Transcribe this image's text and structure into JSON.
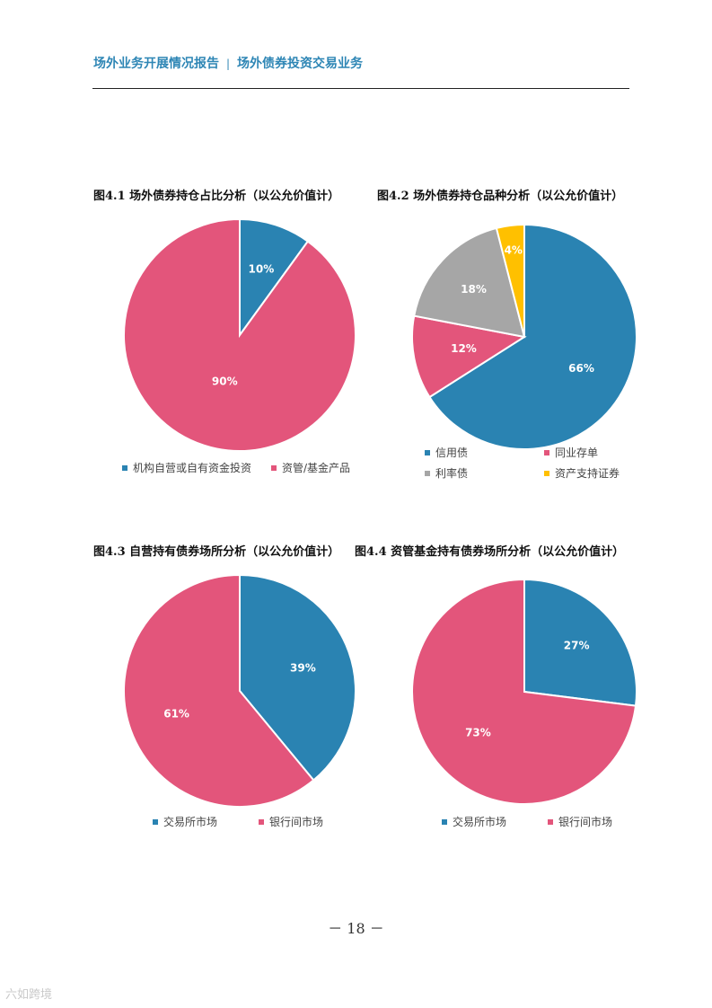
{
  "header": {
    "left": "场外业务开展情况报告",
    "separator": "|",
    "right": "场外债券投资交易业务"
  },
  "page_number": "－ 18 －",
  "watermark": "六如跨境",
  "colors": {
    "blue": "#2a83b2",
    "pink": "#e3557b",
    "gray": "#a6a6a6",
    "yellow": "#ffc000",
    "header": "#2e86b5"
  },
  "chart_data": [
    {
      "type": "pie",
      "title": "图4.1 场外债券持仓占比分析（以公允价值计）",
      "categories": [
        "机构自营或自有资金投资",
        "资管/基金产品"
      ],
      "values": [
        10,
        90
      ],
      "labels": [
        "10%",
        "90%"
      ],
      "colors": [
        "#2a83b2",
        "#e3557b"
      ],
      "legend": "bottom"
    },
    {
      "type": "pie",
      "title": "图4.2 场外债券持仓品种分析（以公允价值计）",
      "categories": [
        "信用债",
        "同业存单",
        "利率债",
        "资产支持证券"
      ],
      "values": [
        66,
        12,
        18,
        4
      ],
      "labels": [
        "66%",
        "12%",
        "18%",
        "4%"
      ],
      "colors": [
        "#2a83b2",
        "#e3557b",
        "#a6a6a6",
        "#ffc000"
      ],
      "legend": "bottom"
    },
    {
      "type": "pie",
      "title": "图4.3 自营持有债券场所分析（以公允价值计）",
      "categories": [
        "交易所市场",
        "银行间市场"
      ],
      "values": [
        39,
        61
      ],
      "labels": [
        "39%",
        "61%"
      ],
      "colors": [
        "#2a83b2",
        "#e3557b"
      ],
      "legend": "bottom"
    },
    {
      "type": "pie",
      "title": "图4.4 资管基金持有债券场所分析（以公允价值计）",
      "categories": [
        "交易所市场",
        "银行间市场"
      ],
      "values": [
        27,
        73
      ],
      "labels": [
        "27%",
        "73%"
      ],
      "colors": [
        "#2a83b2",
        "#e3557b"
      ],
      "legend": "bottom"
    }
  ]
}
